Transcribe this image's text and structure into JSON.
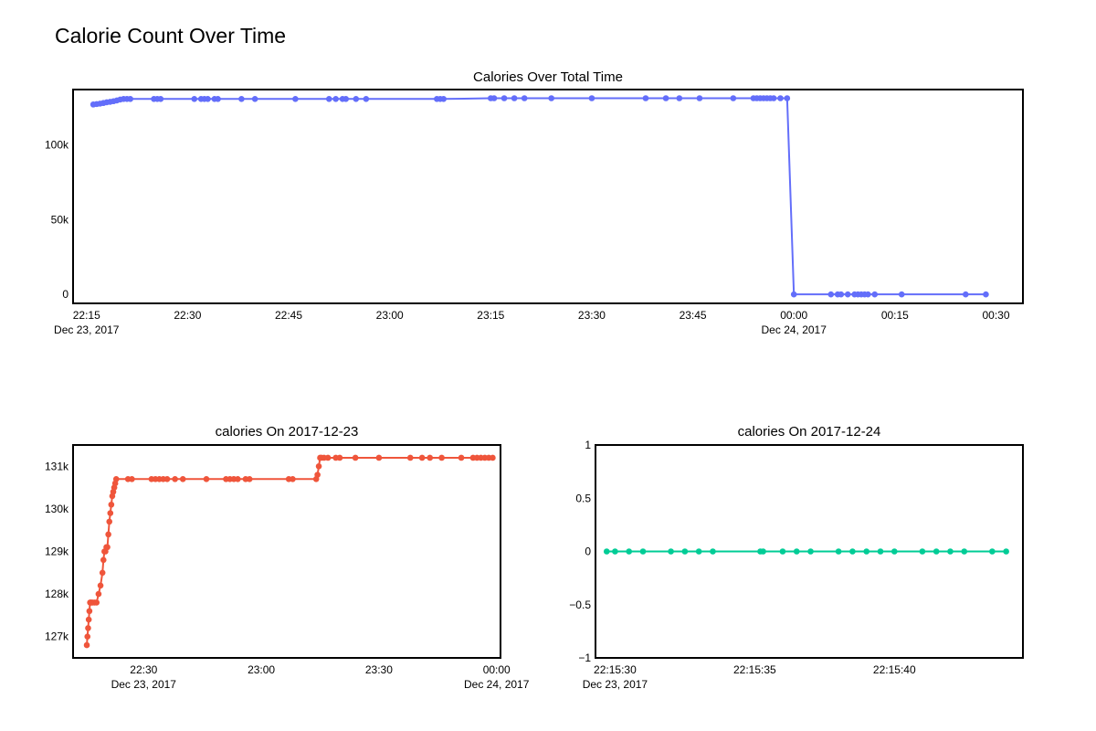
{
  "page_title": "Calorie Count Over Time",
  "chart_data": [
    {
      "id": "total",
      "type": "line",
      "title": "Calories Over Total Time",
      "xlabel": "",
      "ylabel": "",
      "color": "#636efa",
      "x_axis_type": "date",
      "xlim": [
        "2017-12-23 22:13:00",
        "2017-12-24 00:34:00"
      ],
      "ylim": [
        -6000,
        137000
      ],
      "y_ticks": [
        0,
        50000,
        100000
      ],
      "y_tick_labels": [
        "0",
        "50k",
        "100k"
      ],
      "x_ticks": [
        {
          "t": "2017-12-23 22:15:00",
          "label": "22:15",
          "sublabel": "Dec 23, 2017"
        },
        {
          "t": "2017-12-23 22:30:00",
          "label": "22:30",
          "sublabel": ""
        },
        {
          "t": "2017-12-23 22:45:00",
          "label": "22:45",
          "sublabel": ""
        },
        {
          "t": "2017-12-23 23:00:00",
          "label": "23:00",
          "sublabel": ""
        },
        {
          "t": "2017-12-23 23:15:00",
          "label": "23:15",
          "sublabel": ""
        },
        {
          "t": "2017-12-23 23:30:00",
          "label": "23:30",
          "sublabel": ""
        },
        {
          "t": "2017-12-23 23:45:00",
          "label": "23:45",
          "sublabel": ""
        },
        {
          "t": "2017-12-24 00:00:00",
          "label": "00:00",
          "sublabel": "Dec 24, 2017"
        },
        {
          "t": "2017-12-24 00:15:00",
          "label": "00:15",
          "sublabel": ""
        },
        {
          "t": "2017-12-24 00:30:00",
          "label": "00:30",
          "sublabel": ""
        }
      ],
      "x": [
        "2017-12-23 22:16:00",
        "2017-12-23 22:16:30",
        "2017-12-23 22:17:00",
        "2017-12-23 22:17:30",
        "2017-12-23 22:18:00",
        "2017-12-23 22:18:30",
        "2017-12-23 22:19:00",
        "2017-12-23 22:19:30",
        "2017-12-23 22:20:00",
        "2017-12-23 22:20:30",
        "2017-12-23 22:21:00",
        "2017-12-23 22:21:30",
        "2017-12-23 22:25:00",
        "2017-12-23 22:25:30",
        "2017-12-23 22:26:00",
        "2017-12-23 22:31:00",
        "2017-12-23 22:32:00",
        "2017-12-23 22:32:30",
        "2017-12-23 22:33:00",
        "2017-12-23 22:34:00",
        "2017-12-23 22:34:30",
        "2017-12-23 22:38:00",
        "2017-12-23 22:40:00",
        "2017-12-23 22:46:00",
        "2017-12-23 22:51:00",
        "2017-12-23 22:52:00",
        "2017-12-23 22:53:00",
        "2017-12-23 22:53:30",
        "2017-12-23 22:55:00",
        "2017-12-23 22:56:30",
        "2017-12-23 23:07:00",
        "2017-12-23 23:07:30",
        "2017-12-23 23:08:00",
        "2017-12-23 23:15:00",
        "2017-12-23 23:15:30",
        "2017-12-23 23:17:00",
        "2017-12-23 23:18:30",
        "2017-12-23 23:20:00",
        "2017-12-23 23:24:00",
        "2017-12-23 23:30:00",
        "2017-12-23 23:38:00",
        "2017-12-23 23:41:00",
        "2017-12-23 23:43:00",
        "2017-12-23 23:46:00",
        "2017-12-23 23:51:00",
        "2017-12-23 23:54:00",
        "2017-12-23 23:54:30",
        "2017-12-23 23:55:00",
        "2017-12-23 23:55:30",
        "2017-12-23 23:56:00",
        "2017-12-23 23:56:30",
        "2017-12-23 23:57:00",
        "2017-12-23 23:58:00",
        "2017-12-23 23:59:00",
        "2017-12-24 00:00:00",
        "2017-12-24 00:05:30",
        "2017-12-24 00:06:30",
        "2017-12-24 00:07:00",
        "2017-12-24 00:08:00",
        "2017-12-24 00:09:00",
        "2017-12-24 00:09:30",
        "2017-12-24 00:10:00",
        "2017-12-24 00:10:30",
        "2017-12-24 00:11:00",
        "2017-12-24 00:12:00",
        "2017-12-24 00:16:00",
        "2017-12-24 00:25:30",
        "2017-12-24 00:28:30"
      ],
      "y": [
        127000,
        127300,
        127600,
        128000,
        128500,
        128800,
        129200,
        129700,
        130300,
        130700,
        130700,
        130700,
        130700,
        130700,
        130700,
        130700,
        130700,
        130700,
        130700,
        130700,
        130700,
        130700,
        130700,
        130700,
        130700,
        130700,
        130700,
        130700,
        130700,
        130700,
        130700,
        130700,
        130700,
        131200,
        131200,
        131200,
        131200,
        131200,
        131200,
        131200,
        131200,
        131200,
        131200,
        131200,
        131200,
        131200,
        131200,
        131200,
        131200,
        131200,
        131200,
        131200,
        131200,
        131200,
        0,
        0,
        0,
        0,
        0,
        0,
        0,
        0,
        0,
        0,
        0,
        0,
        0,
        0
      ]
    },
    {
      "id": "day1",
      "type": "line",
      "title": "calories On 2017-12-23",
      "xlabel": "",
      "ylabel": "",
      "color": "#ef553b",
      "x_axis_type": "date",
      "xlim": [
        "2017-12-23 22:12:00",
        "2017-12-24 00:01:00"
      ],
      "ylim": [
        126500,
        131500
      ],
      "y_ticks": [
        127000,
        128000,
        129000,
        130000,
        131000
      ],
      "y_tick_labels": [
        "127k",
        "128k",
        "129k",
        "130k",
        "131k"
      ],
      "x_ticks": [
        {
          "t": "2017-12-23 22:30:00",
          "label": "22:30",
          "sublabel": "Dec 23, 2017"
        },
        {
          "t": "2017-12-23 23:00:00",
          "label": "23:00",
          "sublabel": ""
        },
        {
          "t": "2017-12-23 23:30:00",
          "label": "23:30",
          "sublabel": ""
        },
        {
          "t": "2017-12-24 00:00:00",
          "label": "00:00",
          "sublabel": "Dec 24, 2017"
        }
      ],
      "x": [
        "2017-12-23 22:15:30",
        "2017-12-23 22:15:40",
        "2017-12-23 22:15:50",
        "2017-12-23 22:16:00",
        "2017-12-23 22:16:10",
        "2017-12-23 22:16:20",
        "2017-12-23 22:16:30",
        "2017-12-23 22:16:40",
        "2017-12-23 22:17:00",
        "2017-12-23 22:17:30",
        "2017-12-23 22:18:00",
        "2017-12-23 22:18:30",
        "2017-12-23 22:19:00",
        "2017-12-23 22:19:30",
        "2017-12-23 22:19:45",
        "2017-12-23 22:20:00",
        "2017-12-23 22:20:15",
        "2017-12-23 22:20:30",
        "2017-12-23 22:20:45",
        "2017-12-23 22:21:00",
        "2017-12-23 22:21:15",
        "2017-12-23 22:21:30",
        "2017-12-23 22:21:45",
        "2017-12-23 22:22:00",
        "2017-12-23 22:22:15",
        "2017-12-23 22:22:30",
        "2017-12-23 22:22:45",
        "2017-12-23 22:23:00",
        "2017-12-23 22:26:00",
        "2017-12-23 22:27:00",
        "2017-12-23 22:32:00",
        "2017-12-23 22:33:00",
        "2017-12-23 22:34:00",
        "2017-12-23 22:35:00",
        "2017-12-23 22:36:00",
        "2017-12-23 22:38:00",
        "2017-12-23 22:40:00",
        "2017-12-23 22:46:00",
        "2017-12-23 22:51:00",
        "2017-12-23 22:52:00",
        "2017-12-23 22:53:00",
        "2017-12-23 22:54:00",
        "2017-12-23 22:56:00",
        "2017-12-23 22:57:00",
        "2017-12-23 23:07:00",
        "2017-12-23 23:08:00",
        "2017-12-23 23:14:00",
        "2017-12-23 23:14:20",
        "2017-12-23 23:14:40",
        "2017-12-23 23:15:00",
        "2017-12-23 23:15:20",
        "2017-12-23 23:16:00",
        "2017-12-23 23:17:00",
        "2017-12-23 23:19:00",
        "2017-12-23 23:20:00",
        "2017-12-23 23:24:00",
        "2017-12-23 23:30:00",
        "2017-12-23 23:38:00",
        "2017-12-23 23:41:00",
        "2017-12-23 23:43:00",
        "2017-12-23 23:46:00",
        "2017-12-23 23:51:00",
        "2017-12-23 23:54:00",
        "2017-12-23 23:55:00",
        "2017-12-23 23:56:00",
        "2017-12-23 23:57:00",
        "2017-12-23 23:58:00",
        "2017-12-23 23:59:00"
      ],
      "y": [
        126800,
        127000,
        127200,
        127400,
        127600,
        127800,
        127800,
        127800,
        127800,
        127800,
        127800,
        128000,
        128200,
        128500,
        128800,
        129000,
        129000,
        129100,
        129100,
        129400,
        129700,
        129900,
        130100,
        130300,
        130400,
        130500,
        130600,
        130700,
        130700,
        130700,
        130700,
        130700,
        130700,
        130700,
        130700,
        130700,
        130700,
        130700,
        130700,
        130700,
        130700,
        130700,
        130700,
        130700,
        130700,
        130700,
        130700,
        130800,
        131000,
        131200,
        131200,
        131200,
        131200,
        131200,
        131200,
        131200,
        131200,
        131200,
        131200,
        131200,
        131200,
        131200,
        131200,
        131200,
        131200,
        131200,
        131200,
        131200
      ]
    },
    {
      "id": "day2",
      "type": "line",
      "title": "calories On 2017-12-24",
      "xlabel": "",
      "ylabel": "",
      "color": "#00cc96",
      "x_axis_type": "date",
      "xlim": [
        "2017-12-23 22:15:29.3",
        "2017-12-23 22:15:44.6"
      ],
      "ylim": [
        -1,
        1
      ],
      "y_ticks": [
        -1,
        -0.5,
        0,
        0.5,
        1
      ],
      "y_tick_labels": [
        "−1",
        "−0.5",
        "0",
        "0.5",
        "1"
      ],
      "x_ticks": [
        {
          "t": "2017-12-23 22:15:30",
          "label": "22:15:30",
          "sublabel": "Dec 23, 2017"
        },
        {
          "t": "2017-12-23 22:15:35",
          "label": "22:15:35",
          "sublabel": ""
        },
        {
          "t": "2017-12-23 22:15:40",
          "label": "22:15:40",
          "sublabel": ""
        }
      ],
      "x": [
        "2017-12-23 22:15:29.7",
        "2017-12-23 22:15:30.0",
        "2017-12-23 22:15:30.5",
        "2017-12-23 22:15:31.0",
        "2017-12-23 22:15:32.0",
        "2017-12-23 22:15:32.5",
        "2017-12-23 22:15:33.0",
        "2017-12-23 22:15:33.5",
        "2017-12-23 22:15:35.2",
        "2017-12-23 22:15:35.3",
        "2017-12-23 22:15:36.0",
        "2017-12-23 22:15:36.5",
        "2017-12-23 22:15:37.0",
        "2017-12-23 22:15:38.0",
        "2017-12-23 22:15:38.5",
        "2017-12-23 22:15:39.0",
        "2017-12-23 22:15:39.5",
        "2017-12-23 22:15:40.0",
        "2017-12-23 22:15:41.0",
        "2017-12-23 22:15:41.5",
        "2017-12-23 22:15:42.0",
        "2017-12-23 22:15:42.5",
        "2017-12-23 22:15:43.5",
        "2017-12-23 22:15:44.0"
      ],
      "y": [
        0,
        0,
        0,
        0,
        0,
        0,
        0,
        0,
        0,
        0,
        0,
        0,
        0,
        0,
        0,
        0,
        0,
        0,
        0,
        0,
        0,
        0,
        0,
        0
      ]
    }
  ]
}
